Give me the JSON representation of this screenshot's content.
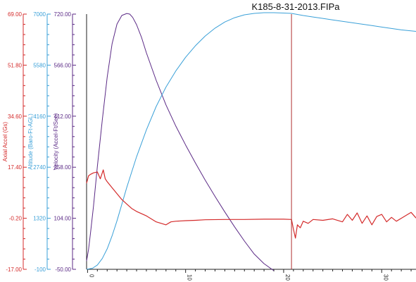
{
  "chart_data": {
    "type": "line",
    "title": "K185-8-31-2013.FIPa",
    "colors": {
      "accel": "#d42b2b",
      "altitude": "#3aa0d8",
      "velocity": "#5b2a86",
      "marker": "#b03030",
      "frame": "#222222"
    },
    "axes": {
      "accel": {
        "label": "Axial Accel (Gs)",
        "ticks": [
          "69.00",
          "51.80",
          "34.60",
          "17.40",
          "-0.20",
          "-17.00"
        ],
        "range": [
          -17.0,
          69.0
        ]
      },
      "altitude": {
        "label": "Altitude (Baro-Ft-AGL)",
        "ticks": [
          "7000",
          "5580",
          "4160",
          "2740",
          "1320",
          "-100"
        ],
        "range": [
          -100,
          7000
        ]
      },
      "velocity": {
        "label": "Velocity (Accel-Ft/Sec)",
        "ticks": [
          "720.00",
          "566.00",
          "412.00",
          "258.00",
          "104.00",
          "-50.00"
        ],
        "range": [
          -50.0,
          720.0
        ]
      },
      "time": {
        "ticks": [
          {
            "label": "0",
            "value": 0
          },
          {
            "label": "10",
            "value": 10
          },
          {
            "label": "20",
            "value": 20
          },
          {
            "label": "30",
            "value": 30
          }
        ],
        "range": [
          -0.1,
          33.5
        ]
      }
    },
    "marker_time": 20.8,
    "series": [
      {
        "key": "velocity",
        "axis": "velocity",
        "x": [
          -0.1,
          0.1,
          0.3,
          0.6,
          1.0,
          1.5,
          2.0,
          2.5,
          3.0,
          3.5,
          4.0,
          4.3,
          4.6,
          5.0,
          5.5,
          6.0,
          7.0,
          8.0,
          9.0,
          10.0,
          11.0,
          12.0,
          13.0,
          14.0,
          15.0,
          16.0,
          17.0,
          18.0,
          19.0
        ],
        "y": [
          -25,
          10,
          60,
          140,
          260,
          400,
          530,
          630,
          690,
          716,
          722,
          720,
          710,
          688,
          650,
          603,
          520,
          446,
          382,
          325,
          271,
          219,
          170,
          123,
          78,
          35,
          -4,
          -33,
          -54
        ]
      },
      {
        "key": "altitude",
        "axis": "altitude",
        "x": [
          -0.1,
          0.5,
          1.0,
          1.5,
          2.0,
          2.5,
          3.0,
          4.0,
          5.0,
          6.0,
          7.0,
          8.0,
          9.0,
          10.0,
          11.0,
          12.0,
          13.0,
          14.0,
          15.0,
          16.0,
          17.0,
          18.0,
          19.0,
          20.0,
          20.8,
          22.0,
          23.0,
          24.0,
          25.0,
          26.0,
          27.0,
          28.0,
          29.0,
          30.0,
          31.0,
          32.0,
          33.5
        ],
        "y": [
          -100,
          -70,
          20,
          200,
          470,
          830,
          1250,
          2180,
          3030,
          3780,
          4430,
          4970,
          5420,
          5800,
          6120,
          6390,
          6610,
          6780,
          6900,
          6980,
          7020,
          7040,
          7040,
          7030,
          7020,
          6960,
          6920,
          6880,
          6840,
          6800,
          6760,
          6720,
          6680,
          6640,
          6600,
          6560,
          6520
        ]
      },
      {
        "key": "accel",
        "axis": "accel",
        "x": [
          -0.1,
          0.1,
          0.3,
          0.6,
          1.0,
          1.3,
          1.6,
          1.8,
          2.0,
          2.5,
          3.0,
          3.5,
          4.0,
          4.5,
          5.0,
          6.0,
          7.0,
          7.5,
          8.0,
          8.5,
          9.0,
          10.0,
          11.0,
          12.0,
          14.0,
          16.0,
          18.0,
          20.0,
          20.8,
          21.0,
          21.2,
          21.4,
          21.7,
          22.0,
          22.5,
          23.0,
          24.0,
          25.0,
          26.0,
          26.5,
          27.0,
          27.5,
          28.0,
          28.5,
          29.0,
          29.5,
          30.0,
          30.5,
          31.0,
          31.5,
          32.0,
          32.5,
          33.0,
          33.5
        ],
        "y": [
          12.0,
          14.5,
          15.0,
          15.5,
          15.8,
          13.5,
          16.5,
          13.5,
          12.5,
          10.5,
          8.5,
          6.5,
          5.0,
          3.5,
          2.5,
          1.0,
          -1.0,
          -1.5,
          -2.0,
          -1.0,
          -0.8,
          -0.6,
          -0.5,
          -0.3,
          -0.2,
          -0.2,
          -0.1,
          -0.1,
          -0.2,
          -3.5,
          -6.5,
          -2.0,
          -3.0,
          -0.8,
          -1.5,
          -0.2,
          -0.5,
          0.0,
          -1.0,
          1.5,
          -0.5,
          2.0,
          -1.5,
          1.0,
          -2.0,
          0.8,
          1.5,
          -1.0,
          0.5,
          -0.8,
          0.2,
          1.2,
          2.2,
          0.3
        ]
      }
    ]
  }
}
